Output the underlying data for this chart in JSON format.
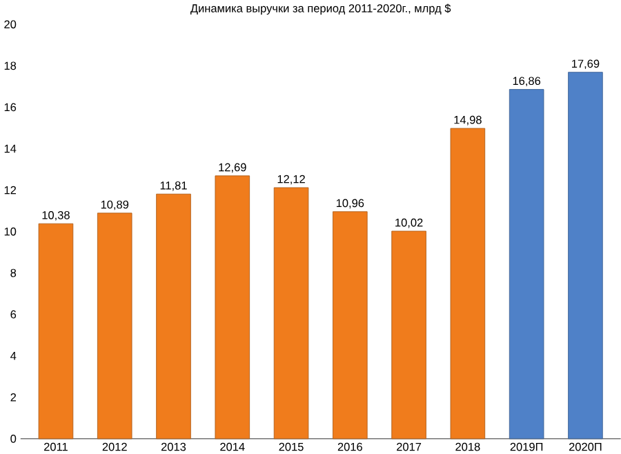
{
  "chart_data": {
    "type": "bar",
    "title": "Динамика выручки за период 2011-2020г.,  млрд $",
    "categories": [
      "2011",
      "2012",
      "2013",
      "2014",
      "2015",
      "2016",
      "2017",
      "2018",
      "2019П",
      "2020П"
    ],
    "values": [
      10.38,
      10.89,
      11.81,
      12.69,
      12.12,
      10.96,
      10.02,
      14.98,
      16.86,
      17.69
    ],
    "value_labels": [
      "10,38",
      "10,89",
      "11,81",
      "12,69",
      "12,12",
      "10,96",
      "10,02",
      "14,98",
      "16,86",
      "17,69"
    ],
    "colors": [
      "#f07c1c",
      "#f07c1c",
      "#f07c1c",
      "#f07c1c",
      "#f07c1c",
      "#f07c1c",
      "#f07c1c",
      "#f07c1c",
      "#4f81c8",
      "#4f81c8"
    ],
    "ylim": [
      0,
      20
    ],
    "yticks": [
      0,
      2,
      4,
      6,
      8,
      10,
      12,
      14,
      16,
      18,
      20
    ]
  }
}
